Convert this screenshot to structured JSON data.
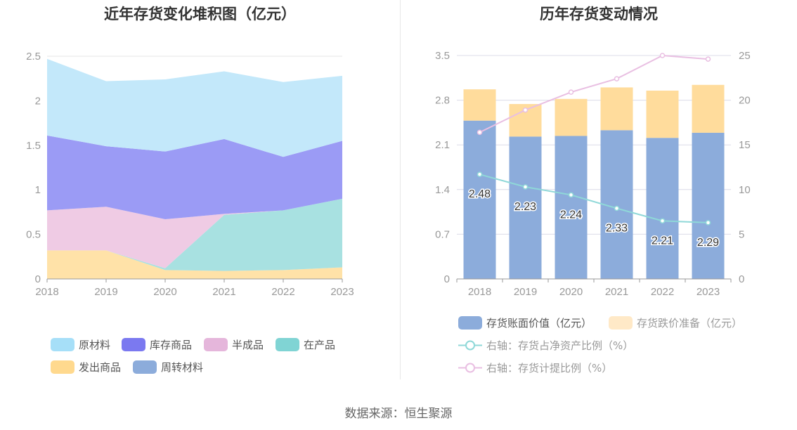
{
  "source": "数据来源：恒生聚源",
  "left": {
    "title": "近年存货变化堆积图（亿元）",
    "legend": [
      {
        "label": "原材料",
        "color": "#A6DFF8"
      },
      {
        "label": "库存商品",
        "color": "#7B79F0"
      },
      {
        "label": "半成品",
        "color": "#E5B6DB"
      },
      {
        "label": "在产品",
        "color": "#80D4D4"
      },
      {
        "label": "发出商品",
        "color": "#FFD98E"
      },
      {
        "label": "周转材料",
        "color": "#8CACDB"
      }
    ]
  },
  "right": {
    "title": "历年存货变动情况",
    "legend": [
      {
        "label": "存货账面价值（亿元）",
        "color": "#8CACDB"
      },
      {
        "label": "存货跌价准备（亿元）",
        "color": "#FFE9C7"
      },
      {
        "label": "右轴：存货占净资产比例（%）",
        "color": "#8FD8D8"
      },
      {
        "label": "右轴：存货计提比例（%）",
        "color": "#E9BFE2"
      }
    ]
  },
  "chart_data": [
    {
      "type": "area",
      "stacked": true,
      "title": "近年存货变化堆积图（亿元）",
      "categories": [
        "2018",
        "2019",
        "2020",
        "2021",
        "2022",
        "2023"
      ],
      "ylim": [
        0,
        2.5
      ],
      "yticks": [
        "0",
        "0.5",
        "1",
        "1.5",
        "2",
        "2.5"
      ],
      "legend_position": "bottom",
      "series": [
        {
          "name": "发出商品",
          "color": "#FFE2A8",
          "values": [
            0.32,
            0.32,
            0.1,
            0.09,
            0.1,
            0.13
          ]
        },
        {
          "name": "在产品",
          "color": "#A8E1E1",
          "values": [
            0.0,
            0.0,
            0.02,
            0.63,
            0.67,
            0.77
          ]
        },
        {
          "name": "半成品",
          "color": "#EFCBE4",
          "values": [
            0.45,
            0.49,
            0.55,
            0.01,
            0.0,
            0.0
          ]
        },
        {
          "name": "库存商品",
          "color": "#9B9BF5",
          "values": [
            0.84,
            0.68,
            0.76,
            0.84,
            0.6,
            0.65
          ]
        },
        {
          "name": "原材料",
          "color": "#C3E8FA",
          "values": [
            0.86,
            0.73,
            0.81,
            0.76,
            0.84,
            0.73
          ]
        },
        {
          "name": "周转材料",
          "color": "#8CACDB",
          "values": [
            0.0,
            0.0,
            0.0,
            0.0,
            0.0,
            0.0
          ]
        }
      ]
    },
    {
      "type": "bar",
      "stacked": true,
      "title": "历年存货变动情况",
      "categories": [
        "2018",
        "2019",
        "2020",
        "2021",
        "2022",
        "2023"
      ],
      "ylim": [
        0,
        3.5
      ],
      "yticks": [
        "0",
        "0.7",
        "1.4",
        "2.1",
        "2.8",
        "3.5"
      ],
      "y2lim": [
        0,
        25
      ],
      "y2ticks": [
        "0",
        "5",
        "10",
        "15",
        "20",
        "25"
      ],
      "legend_position": "bottom",
      "series": [
        {
          "name": "存货账面价值（亿元）",
          "color": "#8CACDB",
          "values": [
            2.48,
            2.23,
            2.24,
            2.33,
            2.21,
            2.29
          ],
          "labels": [
            "2.48",
            "2.23",
            "2.24",
            "2.33",
            "2.21",
            "2.29"
          ]
        },
        {
          "name": "存货跌价准备（亿元）",
          "color": "#FFDC9C",
          "values": [
            0.49,
            0.51,
            0.58,
            0.67,
            0.74,
            0.75
          ]
        }
      ],
      "line_series": [
        {
          "name": "右轴：存货占净资产比例（%）",
          "color": "#8FD8D8",
          "axis": "right",
          "values": [
            11.7,
            10.3,
            9.4,
            7.9,
            6.5,
            6.3
          ]
        },
        {
          "name": "右轴：存货计提比例（%）",
          "color": "#E9BFE2",
          "axis": "right",
          "values": [
            16.4,
            18.9,
            20.9,
            22.4,
            25.0,
            24.6
          ]
        }
      ]
    }
  ]
}
